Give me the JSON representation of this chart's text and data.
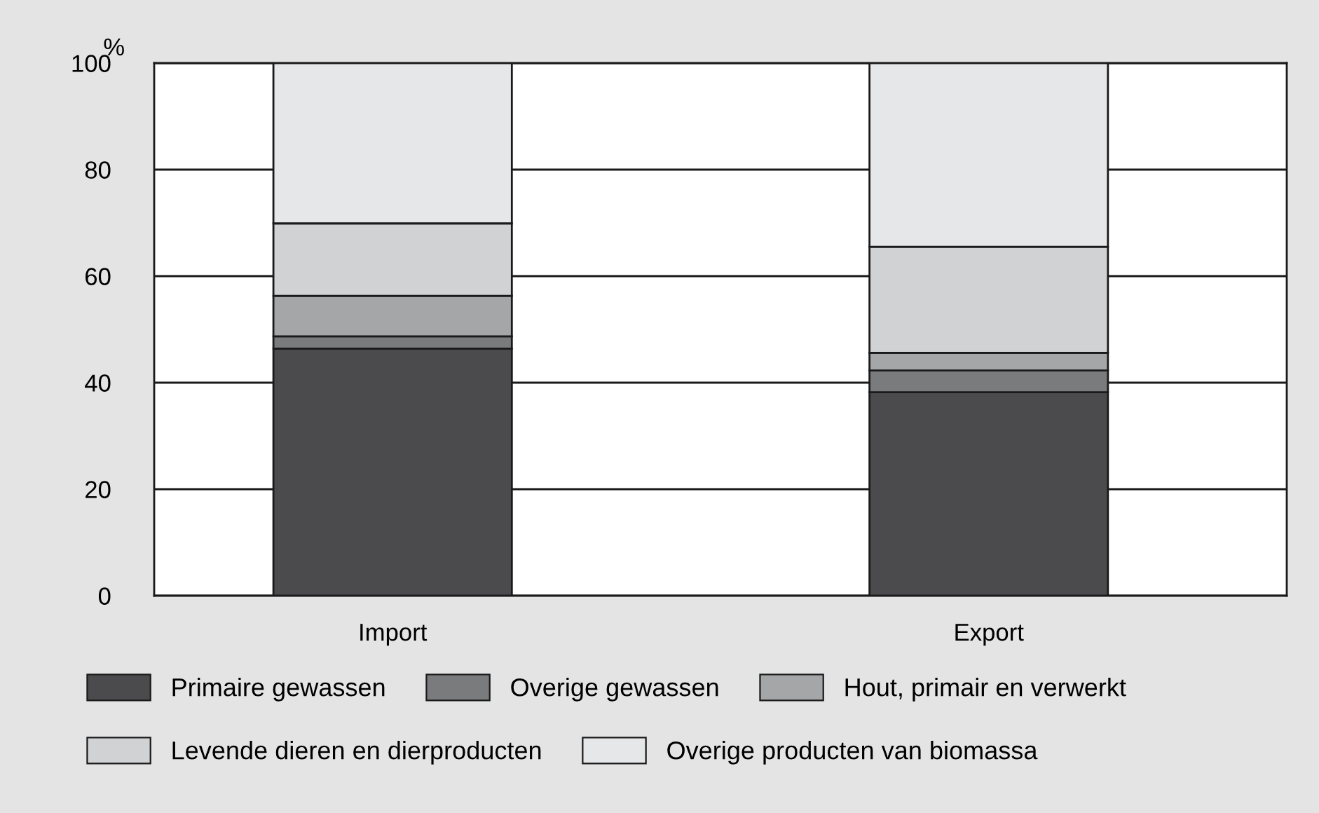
{
  "chart_data": {
    "type": "bar",
    "stacked": true,
    "ylabel": "%",
    "categories": [
      "Import",
      "Export"
    ],
    "series": [
      {
        "name": "Primaire gewassen",
        "color": "#4b4b4d",
        "values": [
          46.4,
          38.2
        ]
      },
      {
        "name": "Overige gewassen",
        "color": "#7a7b7d",
        "values": [
          2.3,
          4.1
        ]
      },
      {
        "name": "Hout, primair en verwerkt",
        "color": "#a5a6a8",
        "values": [
          7.6,
          3.3
        ]
      },
      {
        "name": "Levende dieren en dierproducten",
        "color": "#d1d2d4",
        "values": [
          13.6,
          19.9
        ]
      },
      {
        "name": "Overige producten van biomassa",
        "color": "#e6e7e8",
        "values": [
          30.1,
          34.5
        ]
      }
    ],
    "ylim": [
      0,
      100
    ],
    "yticks": [
      0,
      20,
      40,
      60,
      80,
      100
    ],
    "grid": "y",
    "legend": "bottom"
  }
}
